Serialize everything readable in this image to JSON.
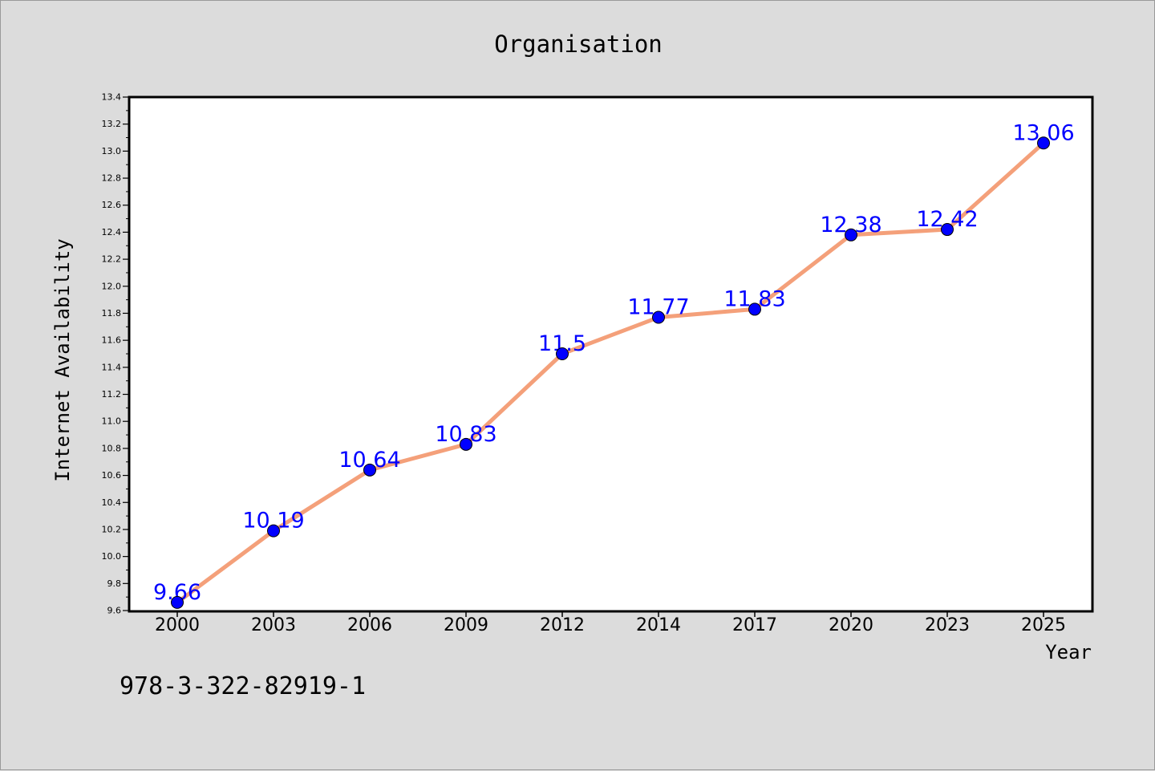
{
  "chart_data": {
    "type": "line",
    "title": "Organisation",
    "xlabel": "Year",
    "ylabel": "Internet Availability",
    "categories": [
      "2000",
      "2003",
      "2006",
      "2009",
      "2012",
      "2014",
      "2017",
      "2020",
      "2023",
      "2025"
    ],
    "series": [
      {
        "values": [
          9.66,
          10.19,
          10.64,
          10.83,
          11.5,
          11.77,
          11.83,
          12.38,
          12.42,
          13.06
        ],
        "labels": [
          "9.66",
          "10.19",
          "10.64",
          "10.83",
          "11.5",
          "11.77",
          "11.83",
          "12.38",
          "12.42",
          "13.06"
        ]
      }
    ],
    "ylim": [
      9.6,
      13.4
    ],
    "yticks": [
      "9.6",
      "9.8",
      "10.0",
      "10.2",
      "10.4",
      "10.6",
      "10.8",
      "11.0",
      "11.2",
      "11.4",
      "11.6",
      "11.8",
      "12.0",
      "12.2",
      "12.4",
      "12.6",
      "12.8",
      "13.0",
      "13.2",
      "13.4"
    ],
    "grid": false,
    "line_color": "#f4a07a",
    "marker_color": "#0000ff",
    "label_color": "#0000ff",
    "footnote": "978-3-322-82919-1"
  }
}
